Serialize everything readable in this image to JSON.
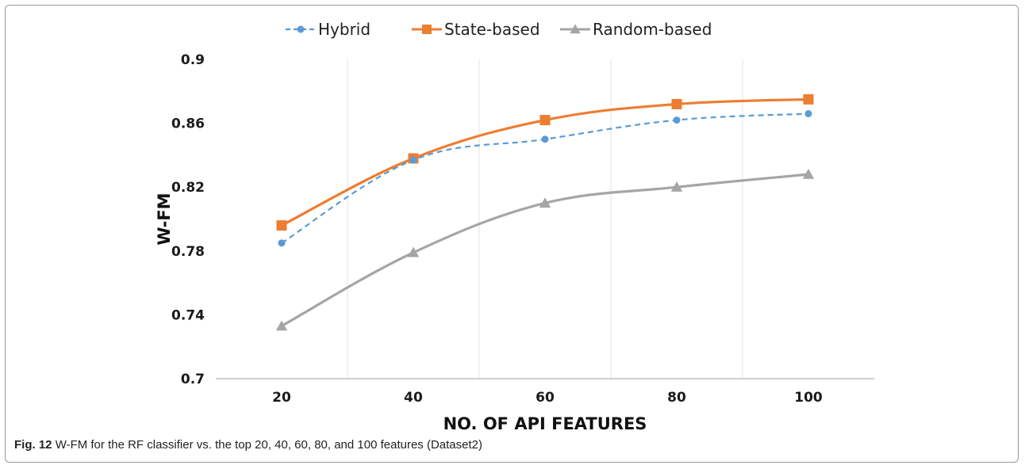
{
  "chart_data": {
    "type": "line",
    "xlabel": "NO. OF API FEATURES",
    "ylabel": "W-FM",
    "categories": [
      "20",
      "40",
      "60",
      "80",
      "100"
    ],
    "ylim": [
      0.7,
      0.9
    ],
    "yticks": [
      "0.7",
      "0.74",
      "0.78",
      "0.82",
      "0.86",
      "0.9"
    ],
    "grid": "vertical",
    "legend_position": "top",
    "series": [
      {
        "name": "Hybrid",
        "values": [
          0.785,
          0.837,
          0.85,
          0.862,
          0.866
        ],
        "color": "#5b9bd5",
        "marker": "circle",
        "dashed": true
      },
      {
        "name": "State-based",
        "values": [
          0.796,
          0.838,
          0.862,
          0.872,
          0.875
        ],
        "color": "#ed7d31",
        "marker": "square",
        "dashed": false
      },
      {
        "name": "Random-based",
        "values": [
          0.733,
          0.779,
          0.81,
          0.82,
          0.828
        ],
        "color": "#a5a5a5",
        "marker": "triangle",
        "dashed": false
      }
    ]
  },
  "caption": {
    "label": "Fig. 12",
    "text": "W-FM for the RF classifier vs. the top 20, 40, 60, 80, and 100 features (Dataset2)"
  }
}
